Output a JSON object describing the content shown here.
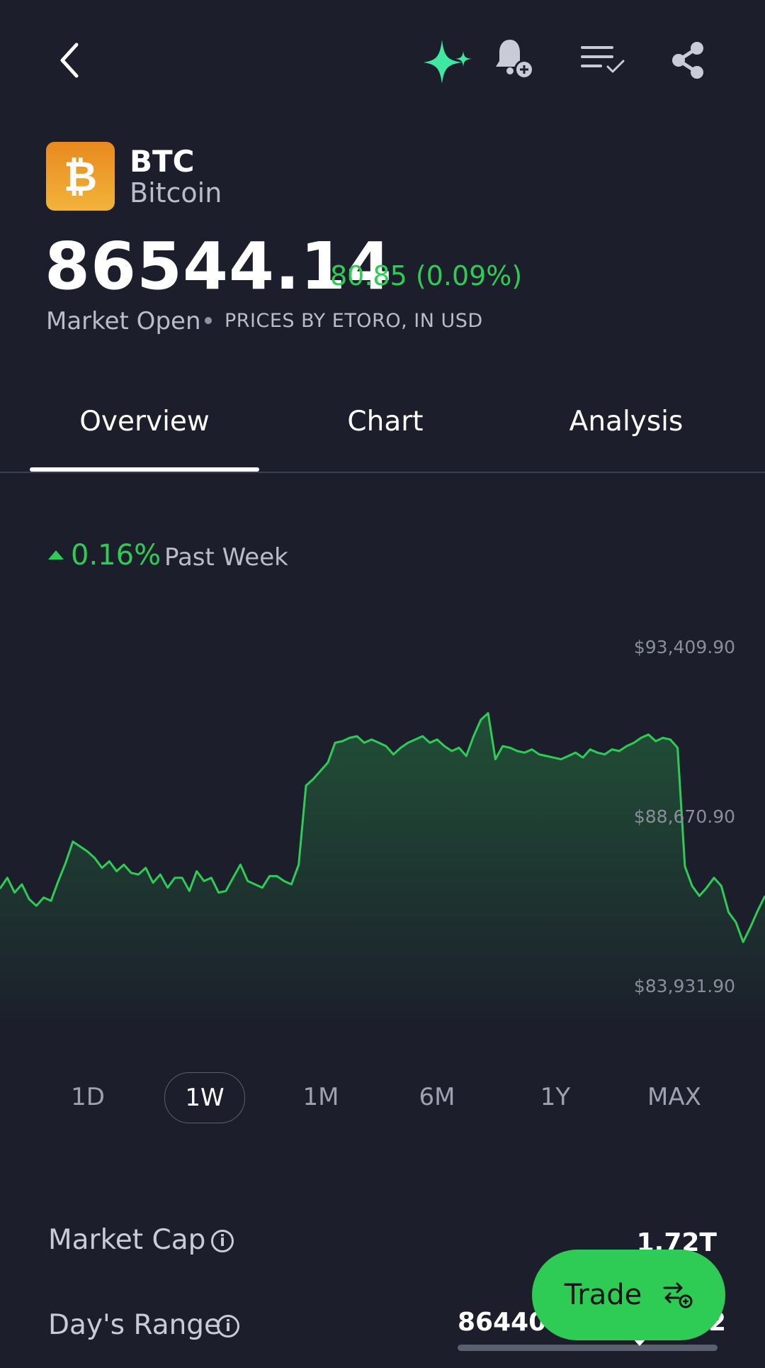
{
  "header": {
    "back_icon": "chevron-left-icon",
    "ai_icon": "sparkles-icon",
    "alert_icon": "bell-plus-icon",
    "watchlist_icon": "list-check-icon",
    "share_icon": "share-icon"
  },
  "asset": {
    "ticker": "BTC",
    "name": "Bitcoin",
    "logo_symbol": "₿",
    "price": "86544.14",
    "change": "80.85 (0.09%)",
    "market_status": "Market Open",
    "price_source": "PRICES BY ETORO, IN USD"
  },
  "tabs": [
    {
      "label": "Overview",
      "active": true
    },
    {
      "label": "Chart",
      "active": false
    },
    {
      "label": "Analysis",
      "active": false
    }
  ],
  "performance": {
    "value": "0.16%",
    "period": "Past Week"
  },
  "chart_data": {
    "type": "area",
    "y_ticks": [
      "$93,409.90",
      "$88,670.90",
      "$83,931.90"
    ],
    "y_tick_values": [
      93409.9,
      88670.9,
      83931.9
    ],
    "ylim": [
      83931.9,
      93409.9
    ],
    "values": [
      86020,
      86350,
      85900,
      86150,
      85700,
      85500,
      85750,
      85650,
      86250,
      86800,
      87450,
      87300,
      87150,
      86950,
      86650,
      86850,
      86550,
      86750,
      86500,
      86450,
      86650,
      86200,
      86450,
      86050,
      86350,
      86350,
      85950,
      86550,
      86250,
      86350,
      85900,
      85950,
      86350,
      86750,
      86250,
      86150,
      86050,
      86400,
      86400,
      86250,
      86150,
      86750,
      89150,
      89350,
      89600,
      89850,
      90450,
      90500,
      90600,
      90650,
      90450,
      90550,
      90450,
      90350,
      90100,
      90300,
      90450,
      90550,
      90650,
      90450,
      90550,
      90350,
      90200,
      90300,
      90050,
      90650,
      91150,
      91350,
      89950,
      90350,
      90300,
      90200,
      90150,
      90250,
      90100,
      90050,
      90000,
      89950,
      90050,
      90150,
      90000,
      90250,
      90150,
      90100,
      90250,
      90200,
      90350,
      90450,
      90600,
      90700,
      90500,
      90600,
      90550,
      90300,
      86700,
      86100,
      85800,
      86050,
      86350,
      86100,
      85300,
      85000,
      84400,
      84850,
      85350,
      85800
    ],
    "line_color": "#2ecc55",
    "grid": false
  },
  "ranges": [
    {
      "label": "1D",
      "active": false
    },
    {
      "label": "1W",
      "active": true
    },
    {
      "label": "1M",
      "active": false
    },
    {
      "label": "6M",
      "active": false
    },
    {
      "label": "1Y",
      "active": false
    },
    {
      "label": "MAX",
      "active": false
    }
  ],
  "stats": {
    "market_cap_label": "Market Cap",
    "market_cap_value": "1.72T",
    "days_range_label": "Day's Range",
    "days_range_value": "86440.0",
    "days_range_high_fragment": "2",
    "info_icon": "info-icon"
  },
  "trade_button": {
    "label": "Trade",
    "icon": "swap-plus-icon"
  },
  "colors": {
    "background": "#1c1f2b",
    "positive": "#2ecc55",
    "accent_ai": "#3ee8a0"
  }
}
